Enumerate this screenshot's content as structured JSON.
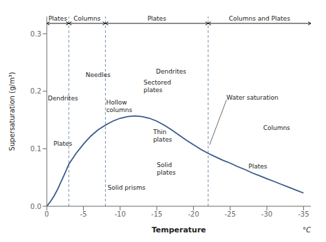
{
  "chart_data": {
    "type": "line",
    "xlabel": "Temperature",
    "xunit": "°C",
    "ylabel": "Supersaturation (g/m³)",
    "x": [
      0,
      -0.5,
      -1,
      -1.5,
      -2,
      -2.5,
      -3,
      -4,
      -5,
      -6,
      -7,
      -8,
      -9,
      -10,
      -11,
      -12,
      -13,
      -14,
      -15,
      -16,
      -17,
      -18,
      -19,
      -20,
      -21,
      -22,
      -23,
      -24,
      -25,
      -26,
      -27,
      -28,
      -29,
      -30,
      -31,
      -32,
      -33,
      -34,
      -35
    ],
    "values": [
      0.0,
      0.008,
      0.018,
      0.03,
      0.044,
      0.058,
      0.073,
      0.092,
      0.108,
      0.122,
      0.133,
      0.141,
      0.148,
      0.153,
      0.156,
      0.157,
      0.156,
      0.153,
      0.148,
      0.141,
      0.133,
      0.124,
      0.115,
      0.107,
      0.099,
      0.092,
      0.086,
      0.08,
      0.075,
      0.069,
      0.064,
      0.058,
      0.053,
      0.048,
      0.043,
      0.038,
      0.033,
      0.028,
      0.023
    ],
    "color": "#3a5a8a",
    "xlim": [
      0,
      -36
    ],
    "xticks": [
      0,
      -5,
      -10,
      -15,
      -20,
      -25,
      -30,
      -35
    ],
    "ylim": [
      0,
      0.33
    ],
    "yticks": [
      {
        "value": 0.0,
        "label": "0.0"
      },
      0.1,
      0.2,
      0.3
    ],
    "vlines_x": [
      -3,
      -8,
      -22
    ],
    "zones": [
      {
        "from": 0,
        "to": -3,
        "label": "Plates"
      },
      {
        "from": -3,
        "to": -8,
        "label": "Columns"
      },
      {
        "from": -8,
        "to": -22,
        "label": "Plates"
      },
      {
        "from": -22,
        "to": -36,
        "label": "Columns and Plates"
      }
    ],
    "annotations": [
      {
        "text": "Dendrites",
        "x": -2.2,
        "y": 0.182
      },
      {
        "text": "Plates",
        "x": -2.2,
        "y": 0.102
      },
      {
        "text": "Needles",
        "x": -5.3,
        "y": 0.222
      },
      {
        "text": "Hollow\ncolumns",
        "x": -8.1,
        "y": 0.174
      },
      {
        "text": "Solid prisms",
        "x": -8.3,
        "y": 0.032
      },
      {
        "text": "Dendrites",
        "x": -19.0,
        "y": 0.228
      },
      {
        "text": "Sectored\nplates",
        "x": -13.2,
        "y": 0.196
      },
      {
        "text": "Thin\nplates",
        "x": -14.5,
        "y": 0.11
      },
      {
        "text": "Solid\nplates",
        "x": -15.0,
        "y": 0.052
      },
      {
        "text": "Columns",
        "x": -29.5,
        "y": 0.137
      },
      {
        "text": "Plates",
        "x": -27.5,
        "y": 0.07
      },
      {
        "text": "Water saturation",
        "x": -24.5,
        "y": 0.185,
        "xy": [
          -22.2,
          0.107
        ]
      }
    ]
  }
}
